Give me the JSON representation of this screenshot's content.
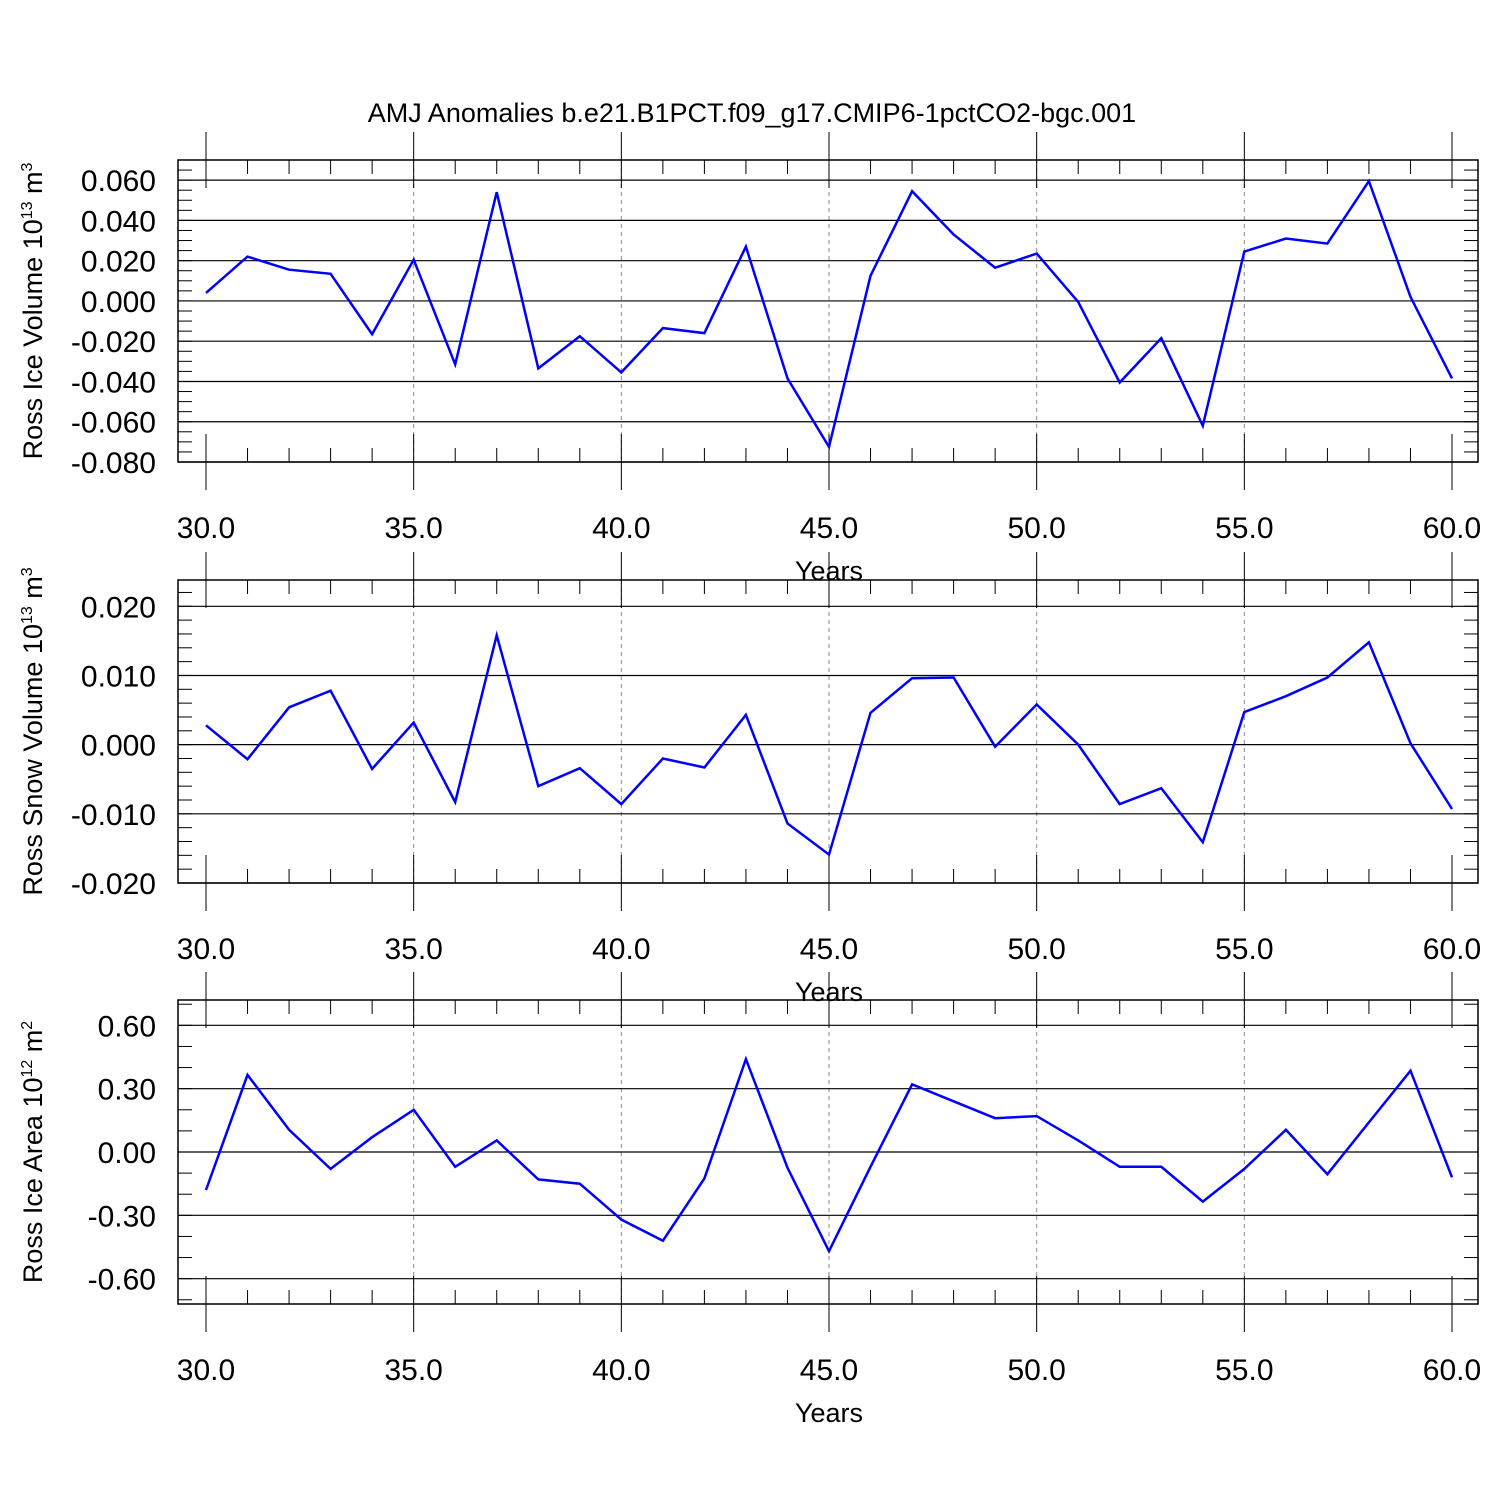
{
  "figure": {
    "title": "AMJ Anomalies b.e21.B1PCT.f09_g17.CMIP6-1pctCO2-bgc.001",
    "line_color": "#0000ff"
  },
  "chart_data": [
    {
      "type": "line",
      "ylabel": "Ross Ice Volume",
      "ylabel_unit_base": "10",
      "ylabel_unit_exp": "13",
      "ylabel_unit_m": "m",
      "ylabel_unit_m_exp": "3",
      "xlabel": "Years",
      "xlim": [
        30,
        60
      ],
      "ylim": [
        -0.08,
        0.07
      ],
      "x_ticks": [
        30,
        35,
        40,
        45,
        50,
        55,
        60
      ],
      "x_tick_labels": [
        "30.0",
        "35.0",
        "40.0",
        "45.0",
        "50.0",
        "55.0",
        "60.0"
      ],
      "y_ticks": [
        -0.08,
        -0.06,
        -0.04,
        -0.02,
        0.0,
        0.02,
        0.04,
        0.06
      ],
      "y_tick_labels": [
        "-0.080",
        "-0.060",
        "-0.040",
        "-0.020",
        "0.000",
        "0.020",
        "0.040",
        "0.060"
      ],
      "y_minor_step": 0.005,
      "x": [
        30,
        31,
        32,
        33,
        34,
        35,
        36,
        37,
        38,
        39,
        40,
        41,
        42,
        43,
        44,
        45,
        46,
        47,
        48,
        49,
        50,
        51,
        52,
        53,
        54,
        55,
        56,
        57,
        58,
        59,
        60
      ],
      "values": [
        0.004,
        0.022,
        0.0155,
        0.0135,
        -0.0165,
        0.0205,
        -0.0315,
        0.054,
        -0.0335,
        -0.0175,
        -0.0355,
        -0.0135,
        -0.016,
        0.027,
        -0.0385,
        -0.0725,
        0.0125,
        0.0545,
        0.033,
        0.0165,
        0.0235,
        -0.0005,
        -0.0405,
        -0.0185,
        -0.062,
        0.0245,
        0.031,
        0.0285,
        0.0595,
        0.002,
        -0.0385
      ],
      "grid": "dashed vertical at major x ticks"
    },
    {
      "type": "line",
      "ylabel": "Ross Snow Volume",
      "ylabel_unit_base": "10",
      "ylabel_unit_exp": "13",
      "ylabel_unit_m": "m",
      "ylabel_unit_m_exp": "3",
      "xlabel": "Years",
      "xlim": [
        30,
        60
      ],
      "ylim": [
        -0.02,
        0.0238
      ],
      "x_ticks": [
        30,
        35,
        40,
        45,
        50,
        55,
        60
      ],
      "x_tick_labels": [
        "30.0",
        "35.0",
        "40.0",
        "45.0",
        "50.0",
        "55.0",
        "60.0"
      ],
      "y_ticks": [
        -0.02,
        -0.01,
        0.0,
        0.01,
        0.02
      ],
      "y_tick_labels": [
        "-0.020",
        "-0.010",
        "0.000",
        "0.010",
        "0.020"
      ],
      "y_minor_step": 0.002,
      "x": [
        30,
        31,
        32,
        33,
        34,
        35,
        36,
        37,
        38,
        39,
        40,
        41,
        42,
        43,
        44,
        45,
        46,
        47,
        48,
        49,
        50,
        51,
        52,
        53,
        54,
        55,
        56,
        57,
        58,
        59,
        60
      ],
      "values": [
        0.0028,
        -0.0021,
        0.0054,
        0.0078,
        -0.0035,
        0.0032,
        -0.0083,
        0.0158,
        -0.006,
        -0.0034,
        -0.0086,
        -0.002,
        -0.0033,
        0.0043,
        -0.0114,
        -0.0159,
        0.0046,
        0.0096,
        0.0097,
        -0.0003,
        0.0058,
        0.0,
        -0.0086,
        -0.0063,
        -0.0141,
        0.0047,
        0.007,
        0.0097,
        0.0148,
        0.0002,
        -0.0093
      ],
      "grid": "dashed vertical at major x ticks"
    },
    {
      "type": "line",
      "ylabel": "Ross Ice Area",
      "ylabel_unit_base": "10",
      "ylabel_unit_exp": "12",
      "ylabel_unit_m": "m",
      "ylabel_unit_m_exp": "2",
      "xlabel": "Years",
      "xlim": [
        30,
        60
      ],
      "ylim": [
        -0.72,
        0.72
      ],
      "x_ticks": [
        30,
        35,
        40,
        45,
        50,
        55,
        60
      ],
      "x_tick_labels": [
        "30.0",
        "35.0",
        "40.0",
        "45.0",
        "50.0",
        "55.0",
        "60.0"
      ],
      "y_ticks": [
        -0.6,
        -0.3,
        0.0,
        0.3,
        0.6
      ],
      "y_tick_labels": [
        "-0.60",
        "-0.30",
        "0.00",
        "0.30",
        "0.60"
      ],
      "y_minor_step": 0.1,
      "x": [
        30,
        31,
        32,
        33,
        34,
        35,
        36,
        37,
        38,
        39,
        40,
        41,
        42,
        43,
        44,
        45,
        46,
        47,
        48,
        49,
        50,
        51,
        52,
        53,
        54,
        55,
        56,
        57,
        58,
        59,
        60
      ],
      "values": [
        -0.18,
        0.365,
        0.105,
        -0.08,
        0.07,
        0.2,
        -0.07,
        0.055,
        -0.13,
        -0.15,
        -0.32,
        -0.42,
        -0.125,
        0.44,
        -0.075,
        -0.47,
        -0.07,
        0.32,
        0.24,
        0.16,
        0.17,
        0.055,
        -0.07,
        -0.07,
        -0.235,
        -0.08,
        0.105,
        -0.105,
        0.14,
        0.385,
        -0.12
      ],
      "grid": "dashed vertical at major x ticks"
    }
  ]
}
